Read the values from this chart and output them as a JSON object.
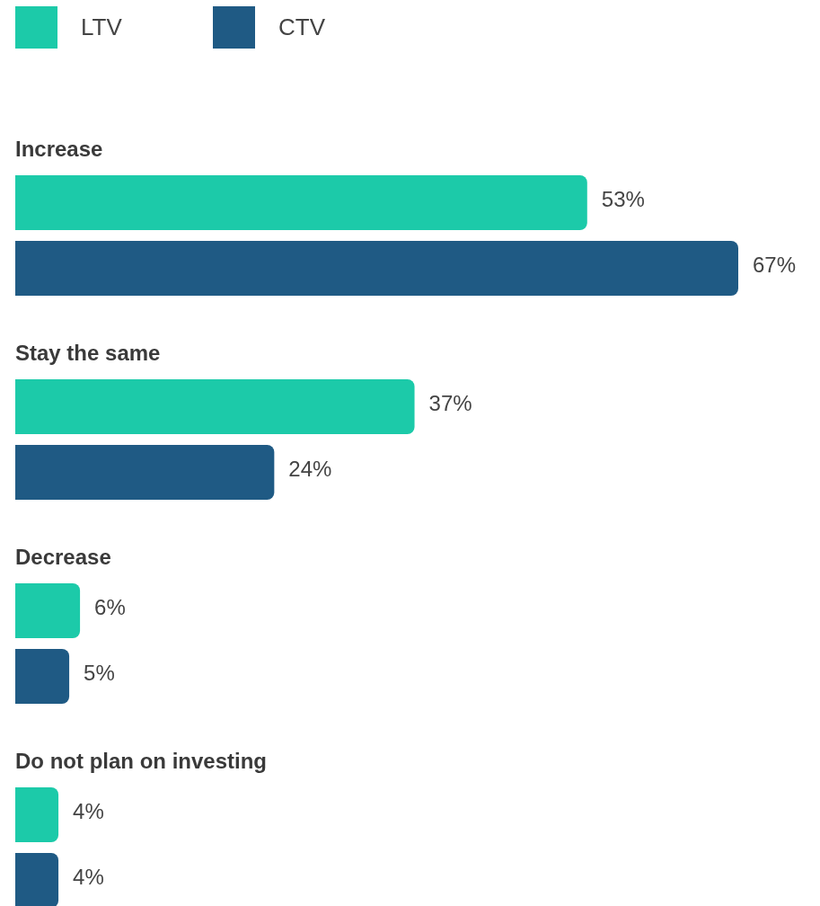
{
  "chart_data": {
    "type": "bar",
    "orientation": "horizontal",
    "legend": "top left",
    "categories": [
      "Increase",
      "Stay the same",
      "Decrease",
      "Do not plan on investing"
    ],
    "series": [
      {
        "name": "LTV",
        "color": "#1ccaa9",
        "values": [
          53,
          37,
          6,
          4
        ],
        "value_labels": [
          "53%",
          "37%",
          "6%",
          "4%"
        ]
      },
      {
        "name": "CTV",
        "color": "#1f5a84",
        "values": [
          67,
          24,
          5,
          4
        ],
        "value_labels": [
          "67%",
          "24%",
          "5%",
          "4%"
        ]
      }
    ]
  }
}
